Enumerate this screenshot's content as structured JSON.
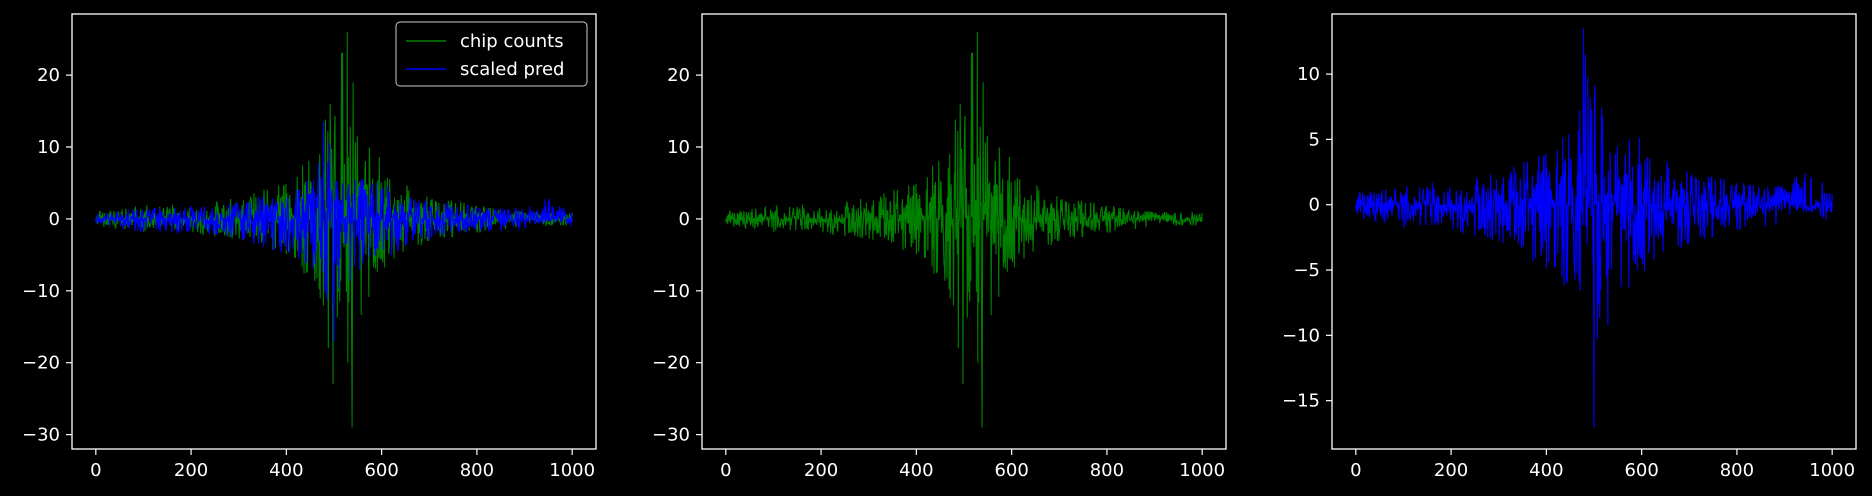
{
  "figure": {
    "background": "#000000",
    "axes_color": "#ffffff"
  },
  "chart_data": [
    {
      "type": "line",
      "title": "",
      "xlabel": "",
      "ylabel": "",
      "xlim": [
        -50,
        1050
      ],
      "ylim": [
        -32,
        28.5
      ],
      "xticks": [
        0,
        200,
        400,
        600,
        800,
        1000
      ],
      "yticks": [
        -30,
        -20,
        -10,
        0,
        10,
        20
      ],
      "xtick_labels": [
        "0",
        "200",
        "400",
        "600",
        "800",
        "1000"
      ],
      "ytick_labels": [
        "−30",
        "−20",
        "−10",
        "0",
        "10",
        "20"
      ],
      "grid": false,
      "legend": {
        "position": "top-right",
        "entries": [
          {
            "label": "chip counts",
            "color": "#008000"
          },
          {
            "label": "scaled pred",
            "color": "#0000ff"
          }
        ]
      },
      "series": [
        {
          "name": "chip counts",
          "color": "#008000",
          "n_points": 1001,
          "envelope_x": [
            0,
            100,
            200,
            300,
            400,
            450,
            480,
            500,
            520,
            540,
            560,
            600,
            650,
            700,
            800,
            900,
            1000
          ],
          "envelope_pos": [
            1,
            2,
            2,
            3,
            5,
            9,
            16,
            14,
            26,
            19,
            13,
            8,
            5,
            3,
            2,
            1,
            1
          ],
          "envelope_neg": [
            -1,
            -2,
            -2,
            -3,
            -5,
            -9,
            -18,
            -23,
            -13,
            -29,
            -13,
            -8,
            -5,
            -3,
            -2,
            -1,
            -1
          ],
          "peaks": [
            {
              "x": 528,
              "y": 26
            },
            {
              "x": 540,
              "y": 19
            },
            {
              "x": 492,
              "y": 16
            },
            {
              "x": 498,
              "y": -23
            },
            {
              "x": 538,
              "y": -29
            },
            {
              "x": 488,
              "y": -18
            }
          ]
        },
        {
          "name": "scaled pred",
          "color": "#0000ff",
          "n_points": 1001,
          "envelope_x": [
            0,
            100,
            200,
            300,
            400,
            450,
            480,
            500,
            520,
            560,
            600,
            650,
            700,
            800,
            900,
            950,
            1000
          ],
          "envelope_pos": [
            1,
            1.5,
            1.8,
            2.5,
            4,
            6,
            13.5,
            10,
            7,
            6,
            5,
            3.5,
            2.5,
            1.8,
            1.5,
            3,
            1
          ],
          "envelope_neg": [
            -1,
            -2,
            -2,
            -3,
            -5,
            -7,
            -10,
            -17,
            -10,
            -7,
            -6,
            -4,
            -3,
            -2,
            -1.5,
            -0.5,
            -1.5
          ],
          "peaks": [
            {
              "x": 478,
              "y": 13.5
            },
            {
              "x": 500,
              "y": -17
            }
          ]
        }
      ]
    },
    {
      "type": "line",
      "title": "",
      "xlabel": "",
      "ylabel": "",
      "xlim": [
        -50,
        1050
      ],
      "ylim": [
        -32,
        28.5
      ],
      "xticks": [
        0,
        200,
        400,
        600,
        800,
        1000
      ],
      "yticks": [
        -30,
        -20,
        -10,
        0,
        10,
        20
      ],
      "xtick_labels": [
        "0",
        "200",
        "400",
        "600",
        "800",
        "1000"
      ],
      "ytick_labels": [
        "−30",
        "−20",
        "−10",
        "0",
        "10",
        "20"
      ],
      "grid": false,
      "series": [
        {
          "color": "#008000",
          "n_points": 1001,
          "envelope_x": [
            0,
            100,
            200,
            300,
            400,
            450,
            480,
            500,
            520,
            540,
            560,
            600,
            650,
            700,
            800,
            900,
            1000
          ],
          "envelope_pos": [
            1,
            2,
            2,
            3,
            5,
            9,
            16,
            14,
            26,
            19,
            13,
            8,
            5,
            3,
            2,
            1,
            1
          ],
          "envelope_neg": [
            -1,
            -2,
            -2,
            -3,
            -5,
            -9,
            -18,
            -23,
            -13,
            -29,
            -13,
            -8,
            -5,
            -3,
            -2,
            -1,
            -1
          ],
          "peaks": [
            {
              "x": 528,
              "y": 26
            },
            {
              "x": 540,
              "y": 19
            },
            {
              "x": 492,
              "y": 16
            },
            {
              "x": 498,
              "y": -23
            },
            {
              "x": 538,
              "y": -29
            },
            {
              "x": 488,
              "y": -18
            }
          ]
        }
      ]
    },
    {
      "type": "line",
      "title": "",
      "xlabel": "",
      "ylabel": "",
      "xlim": [
        -50,
        1050
      ],
      "ylim": [
        -18.7,
        14.6
      ],
      "xticks": [
        0,
        200,
        400,
        600,
        800,
        1000
      ],
      "yticks": [
        -15,
        -10,
        -5,
        0,
        5,
        10
      ],
      "xtick_labels": [
        "0",
        "200",
        "400",
        "600",
        "800",
        "1000"
      ],
      "ytick_labels": [
        "−15",
        "−10",
        "−5",
        "0",
        "5",
        "10"
      ],
      "grid": false,
      "series": [
        {
          "color": "#0000ff",
          "n_points": 1001,
          "envelope_x": [
            0,
            100,
            200,
            300,
            400,
            450,
            480,
            500,
            520,
            560,
            600,
            650,
            700,
            800,
            900,
            950,
            1000
          ],
          "envelope_pos": [
            1,
            1.5,
            1.8,
            2.5,
            4,
            6,
            13.5,
            10,
            7,
            6,
            5,
            3.5,
            2.5,
            1.8,
            1.5,
            3,
            1
          ],
          "envelope_neg": [
            -1,
            -2,
            -2,
            -3,
            -5,
            -7,
            -10,
            -17,
            -10,
            -7,
            -6,
            -4,
            -3,
            -2,
            -1.5,
            -0.5,
            -1.5
          ],
          "peaks": [
            {
              "x": 478,
              "y": 13.5
            },
            {
              "x": 500,
              "y": -17
            }
          ]
        }
      ]
    }
  ]
}
